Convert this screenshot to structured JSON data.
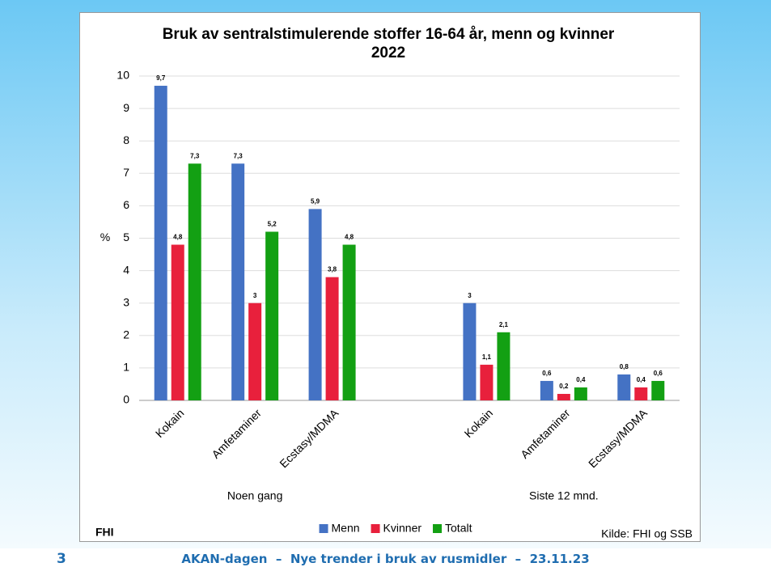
{
  "chart_data": {
    "type": "bar",
    "title": "Bruk av sentralstimulerende stoffer 16-64 år, menn og kvinner 2022",
    "y_label": "%",
    "categories": [
      "Kokain",
      "Amfetaminer",
      "Ecstasy/MDMA",
      null,
      "Kokain",
      "Amfetaminer",
      "Ecstasy/MDMA"
    ],
    "group_labels": [
      "Noen gang",
      "Siste 12 mnd."
    ],
    "series": [
      {
        "name": "Menn",
        "color": "#4472c4",
        "values": [
          9.7,
          7.3,
          5.9,
          null,
          3,
          0.6,
          0.8
        ],
        "value_labels": [
          "9,7",
          "7,3",
          "5,9",
          null,
          "3",
          "0,6",
          "0,8"
        ]
      },
      {
        "name": "Kvinner",
        "color": "#e8203c",
        "values": [
          4.8,
          3,
          3.8,
          null,
          1.1,
          0.2,
          0.4
        ],
        "value_labels": [
          "4,8",
          "3",
          "3,8",
          null,
          "1,1",
          "0,2",
          "0,4"
        ]
      },
      {
        "name": "Totalt",
        "color": "#13a013",
        "values": [
          7.3,
          5.2,
          4.8,
          null,
          2.1,
          0.4,
          0.6
        ],
        "value_labels": [
          "7,3",
          "5,2",
          "4,8",
          null,
          "2,1",
          "0,4",
          "0,6"
        ]
      }
    ],
    "ylim": [
      0,
      10
    ],
    "yticks": [
      0,
      1,
      2,
      3,
      4,
      5,
      6,
      7,
      8,
      9,
      10
    ],
    "grid": true,
    "logo": "FHI",
    "source": "Kilde: FHI og SSB"
  },
  "footer": {
    "page": "3",
    "text": "AKAN-dagen  –  Nye trender i bruk av rusmidler  –  23.11.23"
  }
}
